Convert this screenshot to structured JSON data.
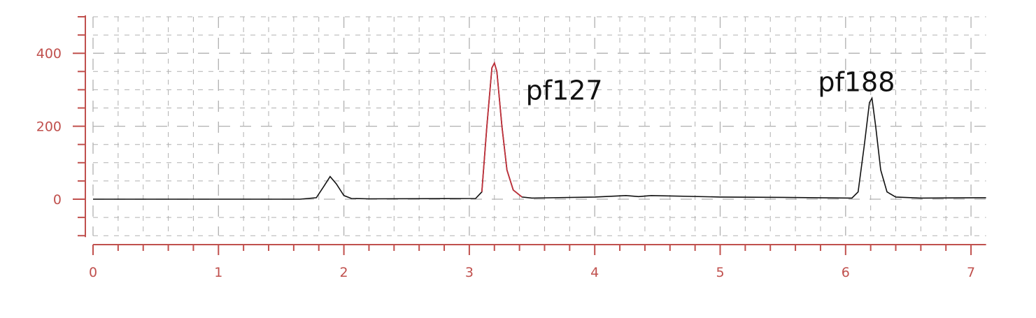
{
  "chart_data": {
    "type": "line",
    "title": "",
    "xlabel": "",
    "ylabel": "",
    "xlim": [
      0,
      7.12
    ],
    "ylim": [
      -100,
      505
    ],
    "x_ticks": [
      0,
      1,
      2,
      3,
      4,
      5,
      6,
      7
    ],
    "x_tick_labels": [
      "0",
      "1",
      "2",
      "3",
      "4",
      "5",
      "6",
      "7"
    ],
    "x_minor_step": 0.2,
    "y_ticks": [
      0,
      200,
      400
    ],
    "y_tick_labels": [
      "0",
      "200",
      "400"
    ],
    "y_minor_step": 50,
    "grid": true,
    "colors": {
      "axis": "#c0504d",
      "line": "#111111",
      "highlight": "#c0303a",
      "grid": "#b0b0b0"
    },
    "series": [
      {
        "points": [
          [
            0,
            0
          ],
          [
            1.65,
            0
          ],
          [
            1.78,
            4
          ],
          [
            1.84,
            35
          ],
          [
            1.89,
            62
          ],
          [
            1.94,
            42
          ],
          [
            2.0,
            10
          ],
          [
            2.06,
            2
          ],
          [
            2.2,
            1
          ],
          [
            3.05,
            2
          ],
          [
            3.1,
            20
          ],
          [
            3.14,
            200
          ],
          [
            3.18,
            360
          ],
          [
            3.2,
            373
          ],
          [
            3.22,
            350
          ],
          [
            3.26,
            200
          ],
          [
            3.3,
            80
          ],
          [
            3.35,
            25
          ],
          [
            3.42,
            6
          ],
          [
            3.5,
            3
          ],
          [
            4.0,
            6
          ],
          [
            4.25,
            10
          ],
          [
            4.35,
            7
          ],
          [
            4.45,
            10
          ],
          [
            5.0,
            6
          ],
          [
            5.5,
            5
          ],
          [
            6.05,
            3
          ],
          [
            6.1,
            20
          ],
          [
            6.15,
            150
          ],
          [
            6.19,
            265
          ],
          [
            6.21,
            277
          ],
          [
            6.24,
            200
          ],
          [
            6.28,
            80
          ],
          [
            6.33,
            20
          ],
          [
            6.4,
            6
          ],
          [
            6.6,
            3
          ],
          [
            7.12,
            4
          ]
        ],
        "highlight_range": [
          3.07,
          3.45
        ]
      }
    ],
    "annotations": [
      {
        "text": "pf127",
        "x": 3.45,
        "y": 273
      },
      {
        "text": "pf188",
        "x": 5.78,
        "y": 296
      }
    ]
  }
}
